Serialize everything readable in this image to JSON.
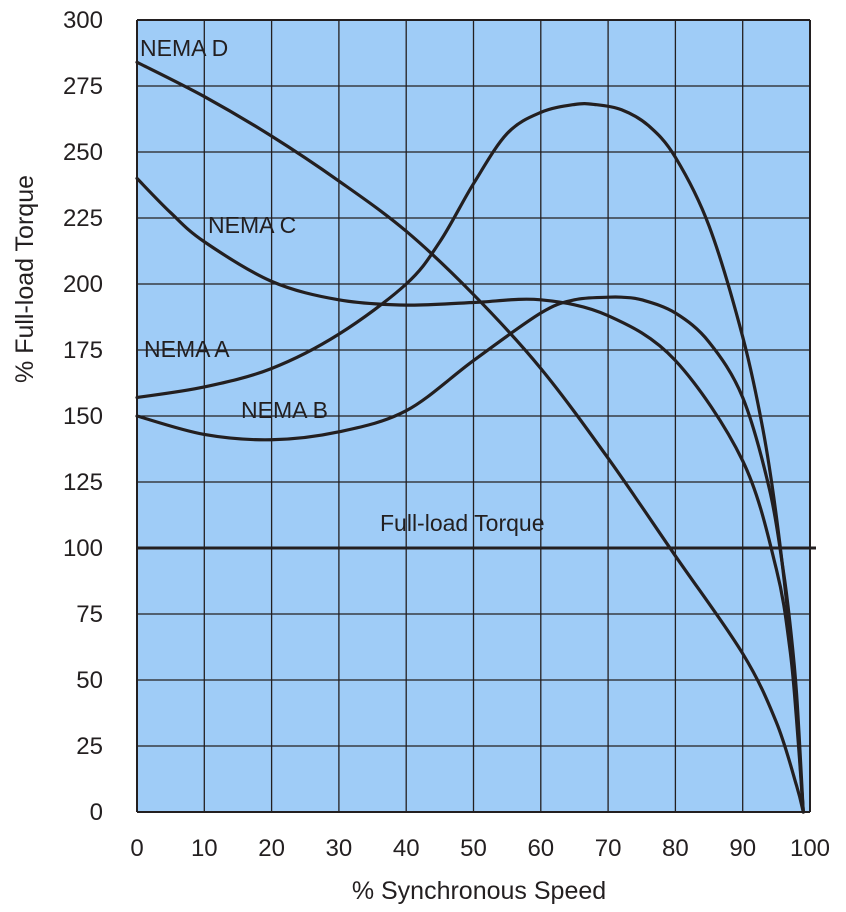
{
  "colors": {
    "plot_background": "#9fccf7",
    "grid": "#231f20",
    "curve": "#231f20",
    "text": "#231f20"
  },
  "chart_data": {
    "type": "line",
    "title": "",
    "xlabel": "% Synchronous Speed",
    "ylabel": "% Full-load Torque",
    "xlim": [
      0,
      100
    ],
    "ylim": [
      0,
      300
    ],
    "x_ticks": [
      0,
      10,
      20,
      30,
      40,
      50,
      60,
      70,
      80,
      90,
      100
    ],
    "y_ticks": [
      0,
      25,
      50,
      75,
      100,
      125,
      150,
      175,
      200,
      225,
      250,
      275,
      300
    ],
    "grid": true,
    "legend": "none",
    "series": [
      {
        "name": "NEMA D",
        "label": "NEMA D",
        "x": [
          0,
          10,
          20,
          30,
          40,
          50,
          60,
          70,
          80,
          90,
          95,
          98,
          99
        ],
        "y": [
          284,
          271,
          256,
          239,
          220,
          196,
          168,
          134,
          97,
          60,
          34,
          10,
          0
        ]
      },
      {
        "name": "NEMA C",
        "label": "NEMA C",
        "x": [
          0,
          5,
          10,
          20,
          30,
          40,
          50,
          60,
          70,
          80,
          90,
          95,
          97,
          98,
          99
        ],
        "y": [
          240,
          227,
          216,
          201,
          194,
          192,
          193,
          194,
          188,
          171,
          133,
          92,
          62,
          35,
          0
        ]
      },
      {
        "name": "NEMA A",
        "label": "NEMA A",
        "x": [
          0,
          10,
          20,
          30,
          40,
          45,
          50,
          55,
          60,
          65,
          68,
          72,
          76,
          80,
          85,
          90,
          93,
          95,
          97,
          98,
          99
        ],
        "y": [
          157,
          161,
          168,
          181,
          200,
          216,
          238,
          257,
          265,
          268,
          268,
          266,
          260,
          248,
          222,
          180,
          145,
          112,
          68,
          38,
          0
        ]
      },
      {
        "name": "NEMA B",
        "label": "NEMA B",
        "x": [
          0,
          10,
          20,
          30,
          40,
          50,
          60,
          65,
          70,
          72,
          75,
          80,
          85,
          90,
          94,
          96,
          97,
          98,
          99
        ],
        "y": [
          150,
          143,
          141,
          144,
          152,
          171,
          189,
          194,
          195,
          195,
          194,
          189,
          178,
          157,
          122,
          92,
          72,
          45,
          0
        ]
      }
    ],
    "reference_lines": [
      {
        "name": "Full-load Torque",
        "label": "Full-load Torque",
        "y": 100
      }
    ]
  }
}
